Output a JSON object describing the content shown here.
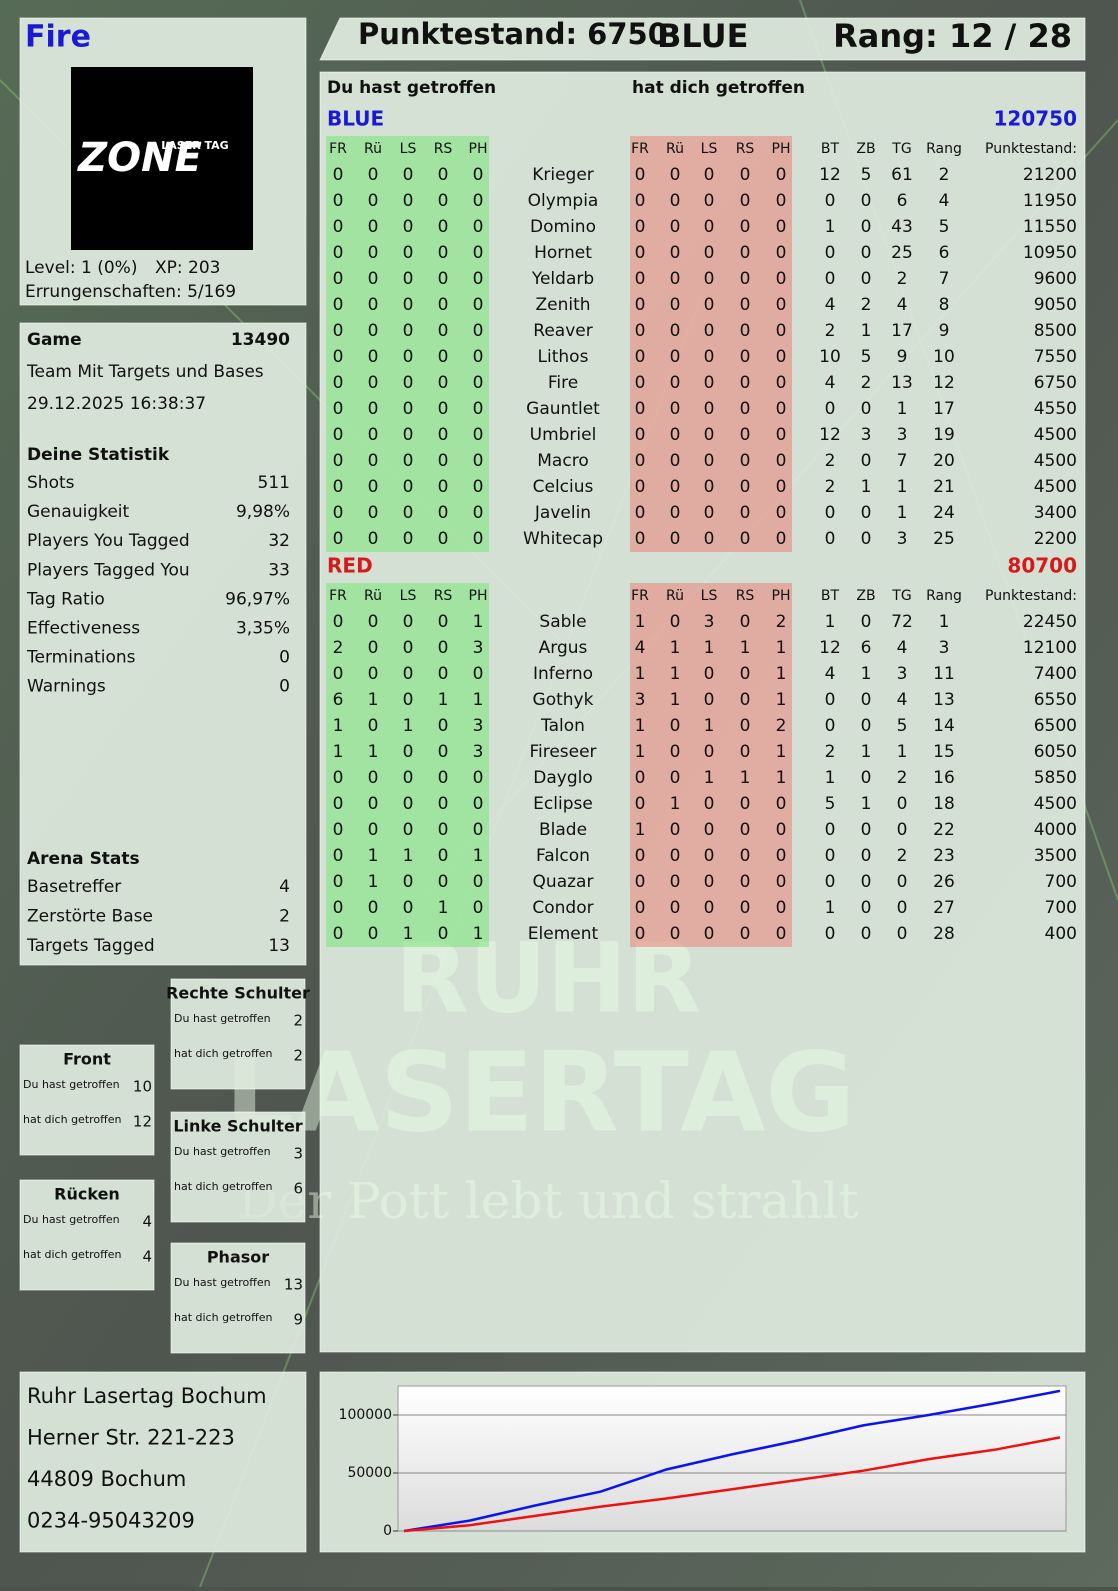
{
  "player": {
    "name": "Fire",
    "logo_small": "LASER TAG",
    "logo_big": "ZONE",
    "level": "Level: 1 (0%)",
    "xp": "XP: 203",
    "achievements": "Errungenschaften: 5/169"
  },
  "header": {
    "score": "Punktestand: 6750",
    "team": "BLUE",
    "rank": "Rang: 12 / 28"
  },
  "game": {
    "label": "Game",
    "id": 13490,
    "mode": "Team Mit Targets und Bases",
    "date": "29.12.2025 16:38:37"
  },
  "stats": {
    "title": "Deine Statistik",
    "rows": [
      [
        "Shots",
        "511"
      ],
      [
        "Genauigkeit",
        "9,98%"
      ],
      [
        "Players You Tagged",
        "32"
      ],
      [
        "Players Tagged You",
        "33"
      ],
      [
        "Tag Ratio",
        "96,97%"
      ],
      [
        "Effectiveness",
        "3,35%"
      ],
      [
        "Terminations",
        "0"
      ],
      [
        "Warnings",
        "0"
      ]
    ]
  },
  "arena": {
    "title": "Arena Stats",
    "rows": [
      [
        "Basetreffer",
        "4"
      ],
      [
        "Zerstörte Base",
        "2"
      ],
      [
        "Targets Tagged",
        "13"
      ]
    ]
  },
  "zones": {
    "given_label": "Du hast getroffen",
    "received_label": "hat dich getroffen",
    "items": [
      {
        "title": "Rechte Schulter",
        "given": 2,
        "received": 2
      },
      {
        "title": "Front",
        "given": 10,
        "received": 12
      },
      {
        "title": "Linke Schulter",
        "given": 3,
        "received": 6
      },
      {
        "title": "Rücken",
        "given": 4,
        "received": 4
      },
      {
        "title": "Phasor",
        "given": 13,
        "received": 9
      }
    ]
  },
  "address": [
    "Ruhr Lasertag Bochum",
    "Herner Str. 221-223",
    "44809 Bochum",
    "0234-95043209"
  ],
  "watermark": {
    "line1": "RUHR",
    "line2": "LASERTAG",
    "tagline": "Der Pott lebt und strahlt"
  },
  "table": {
    "given_label": "Du hast getroffen",
    "received_label": "hat dich getroffen",
    "teams": [
      {
        "name": "BLUE",
        "color": "#1a1ad6",
        "total": 120750,
        "columns": [
          "FR",
          "Rü",
          "LS",
          "RS",
          "PH",
          "FR",
          "Rü",
          "LS",
          "RS",
          "PH",
          "BT",
          "ZB",
          "TG",
          "Rang",
          "Punktestand:"
        ],
        "rows": [
          [
            "Krieger",
            0,
            0,
            0,
            0,
            0,
            0,
            0,
            0,
            0,
            0,
            12,
            5,
            61,
            2,
            21200
          ],
          [
            "Olympia",
            0,
            0,
            0,
            0,
            0,
            0,
            0,
            0,
            0,
            0,
            0,
            0,
            6,
            4,
            11950
          ],
          [
            "Domino",
            0,
            0,
            0,
            0,
            0,
            0,
            0,
            0,
            0,
            0,
            1,
            0,
            43,
            5,
            11550
          ],
          [
            "Hornet",
            0,
            0,
            0,
            0,
            0,
            0,
            0,
            0,
            0,
            0,
            0,
            0,
            25,
            6,
            10950
          ],
          [
            "Yeldarb",
            0,
            0,
            0,
            0,
            0,
            0,
            0,
            0,
            0,
            0,
            0,
            0,
            2,
            7,
            9600
          ],
          [
            "Zenith",
            0,
            0,
            0,
            0,
            0,
            0,
            0,
            0,
            0,
            0,
            4,
            2,
            4,
            8,
            9050
          ],
          [
            "Reaver",
            0,
            0,
            0,
            0,
            0,
            0,
            0,
            0,
            0,
            0,
            2,
            1,
            17,
            9,
            8500
          ],
          [
            "Lithos",
            0,
            0,
            0,
            0,
            0,
            0,
            0,
            0,
            0,
            0,
            10,
            5,
            9,
            10,
            7550
          ],
          [
            "Fire",
            0,
            0,
            0,
            0,
            0,
            0,
            0,
            0,
            0,
            0,
            4,
            2,
            13,
            12,
            6750
          ],
          [
            "Gauntlet",
            0,
            0,
            0,
            0,
            0,
            0,
            0,
            0,
            0,
            0,
            0,
            0,
            1,
            17,
            4550
          ],
          [
            "Umbriel",
            0,
            0,
            0,
            0,
            0,
            0,
            0,
            0,
            0,
            0,
            12,
            3,
            3,
            19,
            4500
          ],
          [
            "Macro",
            0,
            0,
            0,
            0,
            0,
            0,
            0,
            0,
            0,
            0,
            2,
            0,
            7,
            20,
            4500
          ],
          [
            "Celcius",
            0,
            0,
            0,
            0,
            0,
            0,
            0,
            0,
            0,
            0,
            2,
            1,
            1,
            21,
            4500
          ],
          [
            "Javelin",
            0,
            0,
            0,
            0,
            0,
            0,
            0,
            0,
            0,
            0,
            0,
            0,
            1,
            24,
            3400
          ],
          [
            "Whitecap",
            0,
            0,
            0,
            0,
            0,
            0,
            0,
            0,
            0,
            0,
            0,
            0,
            3,
            25,
            2200
          ]
        ]
      },
      {
        "name": "RED",
        "color": "#d41a1a",
        "total": 80700,
        "columns": [
          "FR",
          "Rü",
          "LS",
          "RS",
          "PH",
          "FR",
          "Rü",
          "LS",
          "RS",
          "PH",
          "BT",
          "ZB",
          "TG",
          "Rang",
          "Punktestand:"
        ],
        "rows": [
          [
            "Sable",
            0,
            0,
            0,
            0,
            1,
            1,
            0,
            3,
            0,
            2,
            1,
            0,
            72,
            1,
            22450
          ],
          [
            "Argus",
            2,
            0,
            0,
            0,
            3,
            4,
            1,
            1,
            1,
            1,
            12,
            6,
            4,
            3,
            12100
          ],
          [
            "Inferno",
            0,
            0,
            0,
            0,
            0,
            1,
            1,
            0,
            0,
            1,
            4,
            1,
            3,
            11,
            7400
          ],
          [
            "Gothyk",
            6,
            1,
            0,
            1,
            1,
            3,
            1,
            0,
            0,
            1,
            0,
            0,
            4,
            13,
            6550
          ],
          [
            "Talon",
            1,
            0,
            1,
            0,
            3,
            1,
            0,
            1,
            0,
            2,
            0,
            0,
            5,
            14,
            6500
          ],
          [
            "Fireseer",
            1,
            1,
            0,
            0,
            3,
            1,
            0,
            0,
            0,
            1,
            2,
            1,
            1,
            15,
            6050
          ],
          [
            "Dayglo",
            0,
            0,
            0,
            0,
            0,
            0,
            0,
            1,
            1,
            1,
            1,
            0,
            2,
            16,
            5850
          ],
          [
            "Eclipse",
            0,
            0,
            0,
            0,
            0,
            0,
            1,
            0,
            0,
            0,
            5,
            1,
            0,
            18,
            4500
          ],
          [
            "Blade",
            0,
            0,
            0,
            0,
            0,
            1,
            0,
            0,
            0,
            0,
            0,
            0,
            0,
            22,
            4000
          ],
          [
            "Falcon",
            0,
            1,
            1,
            0,
            1,
            0,
            0,
            0,
            0,
            0,
            0,
            0,
            2,
            23,
            3500
          ],
          [
            "Quazar",
            0,
            1,
            0,
            0,
            0,
            0,
            0,
            0,
            0,
            0,
            0,
            0,
            0,
            26,
            700
          ],
          [
            "Condor",
            0,
            0,
            0,
            1,
            0,
            0,
            0,
            0,
            0,
            0,
            1,
            0,
            0,
            27,
            700
          ],
          [
            "Element",
            0,
            0,
            1,
            0,
            1,
            0,
            0,
            0,
            0,
            0,
            0,
            0,
            0,
            28,
            400
          ]
        ]
      }
    ]
  },
  "chart_data": {
    "type": "line",
    "ylim": [
      0,
      125000
    ],
    "yticks": [
      0,
      50000,
      100000
    ],
    "grid": true,
    "series": [
      {
        "name": "BLUE",
        "color": "#0a14f0",
        "values": [
          0,
          9000,
          22000,
          34000,
          53000,
          66000,
          78000,
          91000,
          100000,
          110000,
          120750
        ]
      },
      {
        "name": "RED",
        "color": "#f01010",
        "values": [
          0,
          5000,
          13000,
          21000,
          28000,
          36000,
          44000,
          52000,
          62000,
          70000,
          80700
        ]
      }
    ]
  }
}
